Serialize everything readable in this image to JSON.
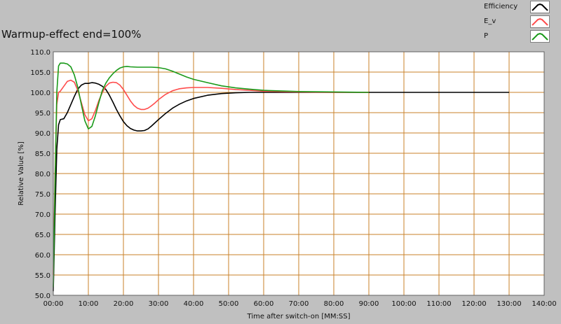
{
  "title": "Warmup-effect end=100%",
  "legend": [
    {
      "label": "Efficiency",
      "color": "#000000"
    },
    {
      "label": "E_v",
      "color": "#ff4b4b"
    },
    {
      "label": "P",
      "color": "#1a9a1a"
    }
  ],
  "chart_data": {
    "type": "line",
    "title": "Warmup-effect end=100%",
    "xlabel": "Time after switch-on [MM:SS]",
    "ylabel": "Relative Value [%]",
    "xlim": [
      0,
      140
    ],
    "ylim": [
      50,
      110
    ],
    "x_tick_labels": [
      "00:00",
      "10:00",
      "20:00",
      "30:00",
      "40:00",
      "50:00",
      "60:00",
      "70:00",
      "80:00",
      "90:00",
      "100:00",
      "110:00",
      "120:00",
      "130:00",
      "140:00"
    ],
    "y_tick_labels": [
      "50.0",
      "55.0",
      "60.0",
      "65.0",
      "70.0",
      "75.0",
      "80.0",
      "85.0",
      "90.0",
      "95.0",
      "100.0",
      "105.0",
      "110.0"
    ],
    "grid": true,
    "legend_position": "top-right",
    "series": [
      {
        "name": "Efficiency",
        "color": "#000000",
        "points": [
          [
            0,
            51
          ],
          [
            0.5,
            70
          ],
          [
            1,
            86
          ],
          [
            1.5,
            92
          ],
          [
            2,
            93.3
          ],
          [
            3,
            93.5
          ],
          [
            4,
            95
          ],
          [
            5,
            97
          ],
          [
            6,
            99
          ],
          [
            7,
            100.8
          ],
          [
            8,
            101.8
          ],
          [
            9,
            102.2
          ],
          [
            10,
            102.2
          ],
          [
            11,
            102.4
          ],
          [
            12,
            102.3
          ],
          [
            13,
            102
          ],
          [
            14,
            101.5
          ],
          [
            15,
            100.7
          ],
          [
            16,
            99.3
          ],
          [
            17,
            97.6
          ],
          [
            18,
            95.8
          ],
          [
            19,
            94.2
          ],
          [
            20,
            92.8
          ],
          [
            21,
            91.8
          ],
          [
            22,
            91.1
          ],
          [
            23,
            90.7
          ],
          [
            24,
            90.5
          ],
          [
            25,
            90.5
          ],
          [
            26,
            90.6
          ],
          [
            27,
            91
          ],
          [
            28,
            91.7
          ],
          [
            29,
            92.5
          ],
          [
            30,
            93.3
          ],
          [
            32,
            94.8
          ],
          [
            34,
            96.1
          ],
          [
            36,
            97.1
          ],
          [
            38,
            97.9
          ],
          [
            40,
            98.5
          ],
          [
            44,
            99.3
          ],
          [
            48,
            99.7
          ],
          [
            52,
            99.9
          ],
          [
            56,
            100
          ],
          [
            60,
            100
          ],
          [
            70,
            100
          ],
          [
            80,
            100
          ],
          [
            90,
            100
          ],
          [
            100,
            100
          ],
          [
            110,
            100
          ],
          [
            120,
            100
          ],
          [
            130,
            100
          ]
        ]
      },
      {
        "name": "E_v",
        "color": "#ff4b4b",
        "points": [
          [
            0,
            55
          ],
          [
            0.5,
            80
          ],
          [
            1,
            97
          ],
          [
            1.5,
            100
          ],
          [
            2,
            100.3
          ],
          [
            3,
            101.5
          ],
          [
            4,
            102.7
          ],
          [
            5,
            103
          ],
          [
            6,
            102.5
          ],
          [
            7,
            100.5
          ],
          [
            8,
            97.5
          ],
          [
            9,
            94.5
          ],
          [
            10,
            93
          ],
          [
            11,
            93.5
          ],
          [
            12,
            95.5
          ],
          [
            13,
            98
          ],
          [
            14,
            100
          ],
          [
            15,
            101.5
          ],
          [
            16,
            102.3
          ],
          [
            17,
            102.5
          ],
          [
            18,
            102.4
          ],
          [
            19,
            101.8
          ],
          [
            20,
            100.7
          ],
          [
            21,
            99.3
          ],
          [
            22,
            97.9
          ],
          [
            23,
            96.8
          ],
          [
            24,
            96.1
          ],
          [
            25,
            95.8
          ],
          [
            26,
            95.8
          ],
          [
            27,
            96.1
          ],
          [
            28,
            96.7
          ],
          [
            29,
            97.4
          ],
          [
            30,
            98.2
          ],
          [
            32,
            99.5
          ],
          [
            34,
            100.4
          ],
          [
            36,
            100.9
          ],
          [
            38,
            101.1
          ],
          [
            40,
            101.2
          ],
          [
            44,
            101.2
          ],
          [
            48,
            101
          ],
          [
            52,
            100.7
          ],
          [
            56,
            100.5
          ],
          [
            60,
            100.3
          ],
          [
            70,
            100.1
          ],
          [
            80,
            100
          ],
          [
            90,
            100
          ]
        ]
      },
      {
        "name": "P",
        "color": "#1a9a1a",
        "points": [
          [
            0,
            52
          ],
          [
            0.5,
            78
          ],
          [
            1,
            100
          ],
          [
            1.5,
            106.5
          ],
          [
            2,
            107.2
          ],
          [
            3,
            107.2
          ],
          [
            4,
            107
          ],
          [
            5,
            106.3
          ],
          [
            6,
            104.3
          ],
          [
            7,
            101.2
          ],
          [
            8,
            97
          ],
          [
            9,
            93
          ],
          [
            10,
            91
          ],
          [
            11,
            91.6
          ],
          [
            12,
            94.2
          ],
          [
            13,
            97.5
          ],
          [
            14,
            100.5
          ],
          [
            15,
            102.3
          ],
          [
            16,
            103.6
          ],
          [
            17,
            104.6
          ],
          [
            18,
            105.4
          ],
          [
            19,
            106
          ],
          [
            20,
            106.3
          ],
          [
            21,
            106.4
          ],
          [
            22,
            106.3
          ],
          [
            24,
            106.2
          ],
          [
            26,
            106.2
          ],
          [
            28,
            106.2
          ],
          [
            30,
            106.1
          ],
          [
            32,
            105.8
          ],
          [
            34,
            105.2
          ],
          [
            36,
            104.5
          ],
          [
            38,
            103.8
          ],
          [
            40,
            103.2
          ],
          [
            44,
            102.4
          ],
          [
            48,
            101.6
          ],
          [
            52,
            101.1
          ],
          [
            56,
            100.8
          ],
          [
            60,
            100.5
          ],
          [
            70,
            100.2
          ],
          [
            80,
            100.1
          ],
          [
            90,
            100
          ]
        ]
      }
    ]
  }
}
